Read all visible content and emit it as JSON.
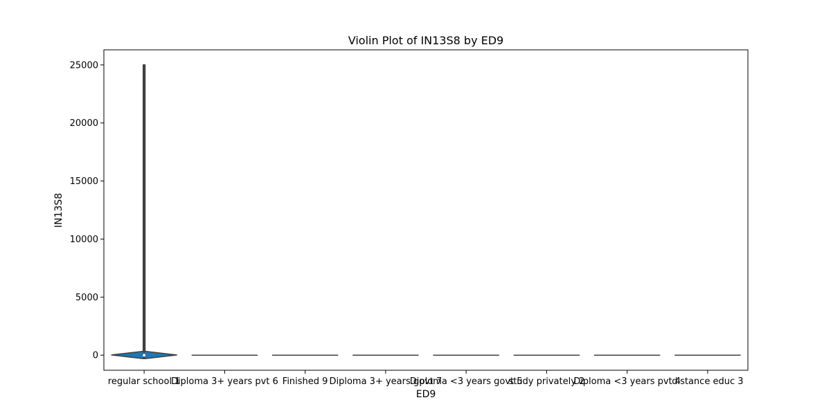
{
  "chart_data": {
    "type": "violin",
    "title": "Violin Plot of IN13S8 by ED9",
    "xlabel": "ED9",
    "ylabel": "IN13S8",
    "categories": [
      "regular school 1",
      "Diploma 3+ years pvt 6",
      "Finished 9",
      "Diploma 3+ years govt 7",
      "Diploma <3 years govt 5",
      "study privately 2",
      "Diploma <3 years pvt 4",
      "distance educ 3"
    ],
    "ylim": [
      -1300,
      26300
    ],
    "yticks": [
      0,
      5000,
      10000,
      15000,
      20000,
      25000
    ],
    "grid": false,
    "violins": [
      {
        "category": "regular school 1",
        "min": -300,
        "max": 25000,
        "median": 0,
        "q1": 0,
        "q3": 100
      },
      {
        "category": "Diploma 3+ years pvt 6",
        "min": 0,
        "max": 0,
        "median": 0
      },
      {
        "category": "Finished 9",
        "min": 0,
        "max": 0,
        "median": 0
      },
      {
        "category": "Diploma 3+ years govt 7",
        "min": 0,
        "max": 0,
        "median": 0
      },
      {
        "category": "Diploma <3 years govt 5",
        "min": 0,
        "max": 0,
        "median": 0
      },
      {
        "category": "study privately 2",
        "min": 0,
        "max": 0,
        "median": 0
      },
      {
        "category": "Diploma <3 years pvt 4",
        "min": 0,
        "max": 0,
        "median": 0
      },
      {
        "category": "distance educ 3",
        "min": 0,
        "max": 0,
        "median": 0
      }
    ],
    "colors": {
      "fill": "#1f77b4",
      "line": "#3f3f3f"
    }
  }
}
